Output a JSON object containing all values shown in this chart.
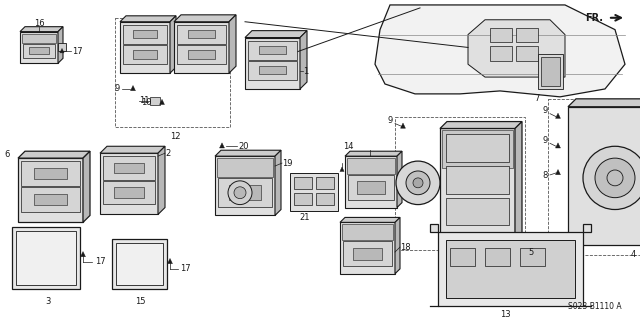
{
  "bg_color": "#ffffff",
  "line_color": "#1a1a1a",
  "fig_width": 6.4,
  "fig_height": 3.19,
  "part_number": "S023-B1110 A",
  "fr_label": "FR."
}
